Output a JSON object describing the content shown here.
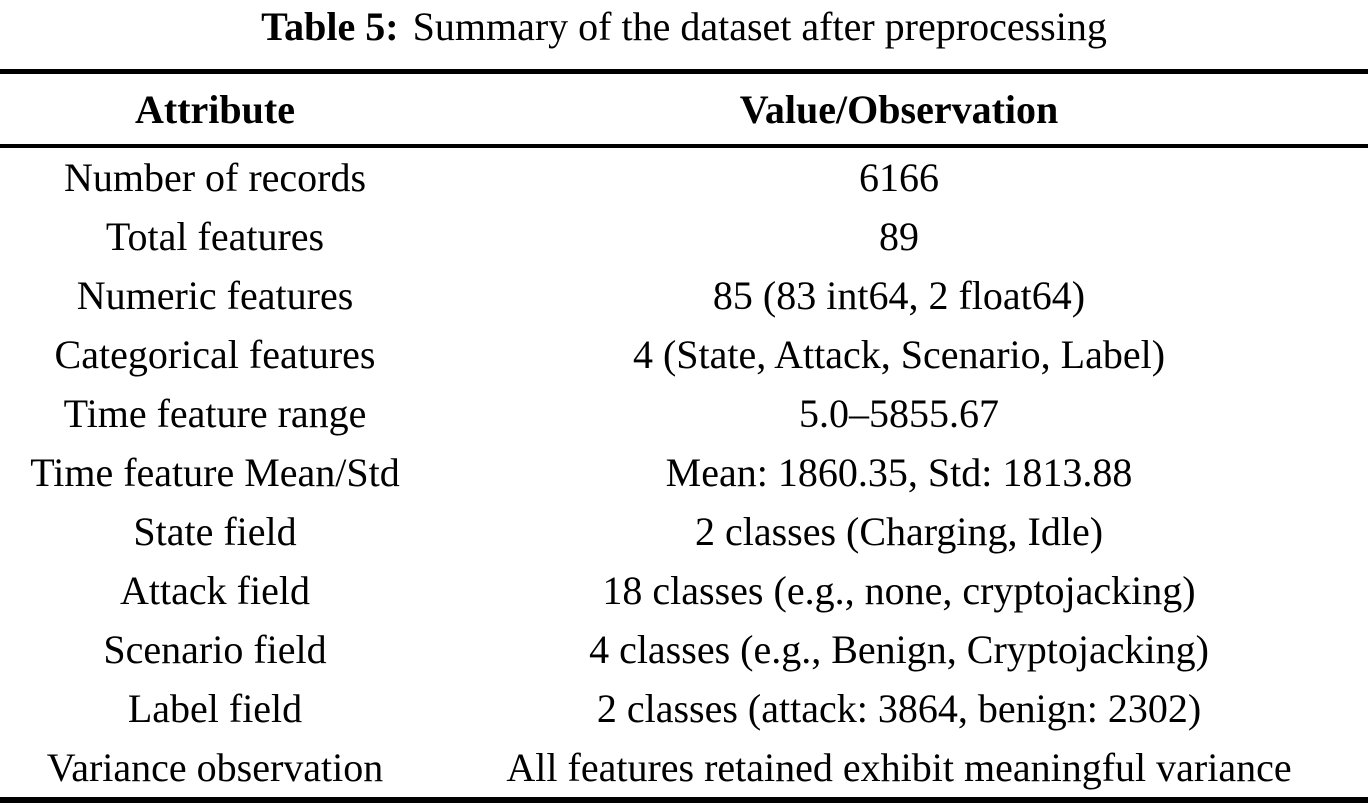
{
  "caption": {
    "label": "Table 5:",
    "text": "Summary of the dataset after preprocessing"
  },
  "table": {
    "columns": [
      "Attribute",
      "Value/Observation"
    ],
    "rows": [
      {
        "attribute": "Number of records",
        "value": "6166"
      },
      {
        "attribute": "Total features",
        "value": "89"
      },
      {
        "attribute": "Numeric features",
        "value": "85 (83 int64, 2 float64)"
      },
      {
        "attribute": "Categorical features",
        "value": "4 (State, Attack, Scenario, Label)"
      },
      {
        "attribute": "Time feature range",
        "value": "5.0–5855.67"
      },
      {
        "attribute": "Time feature Mean/Std",
        "value": "Mean: 1860.35, Std: 1813.88"
      },
      {
        "attribute": "State field",
        "value": "2 classes (Charging, Idle)"
      },
      {
        "attribute": "Attack field",
        "value": "18 classes (e.g., none, cryptojacking)"
      },
      {
        "attribute": "Scenario field",
        "value": "4 classes (e.g., Benign, Cryptojacking)"
      },
      {
        "attribute": "Label field",
        "value": "2 classes (attack: 3864, benign: 2302)"
      },
      {
        "attribute": "Variance observation",
        "value": "All features retained exhibit meaningful variance"
      }
    ]
  },
  "colors": {
    "background": "#ffffff",
    "text": "#000000",
    "rule": "#000000"
  }
}
